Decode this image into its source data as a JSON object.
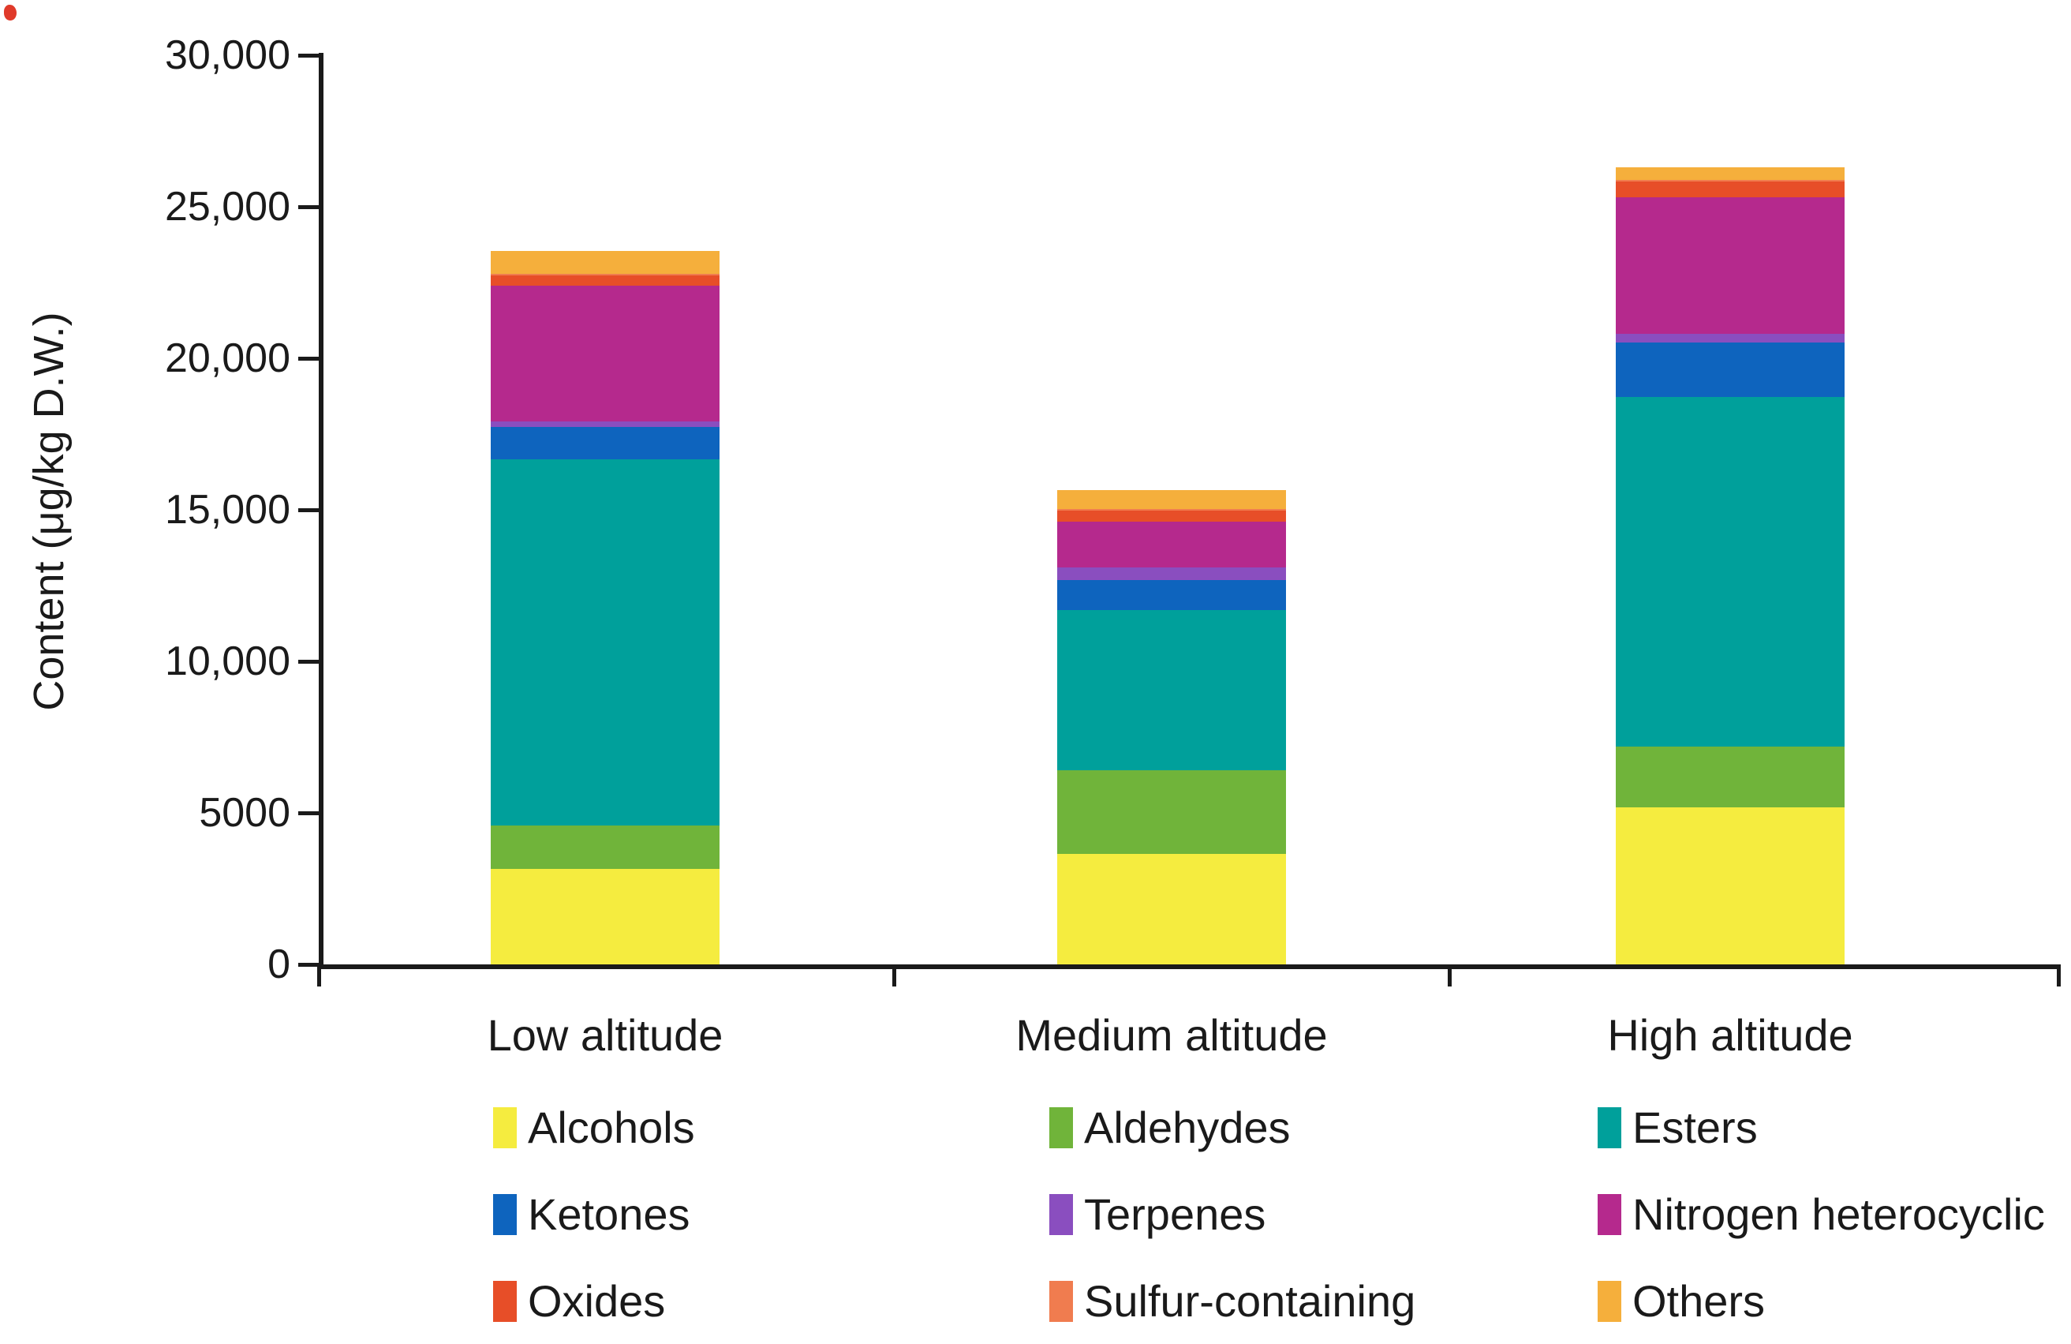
{
  "figure": {
    "background": "#ffffff",
    "axis_color": "#1a1a1a",
    "y_axis": {
      "title": "Content (μg/kg D.W.)",
      "tick_labels": [
        "30,000",
        "25,000",
        "20,000",
        "15,000",
        "10,000",
        "5000",
        "0"
      ],
      "tick_values": [
        30000,
        25000,
        20000,
        15000,
        10000,
        5000,
        0
      ],
      "min": 0,
      "max": 30000
    },
    "x_axis": {
      "categories": [
        "Low altitude",
        "Medium altitude",
        "High altitude"
      ]
    }
  },
  "chart_data": {
    "type": "bar",
    "stacked": true,
    "title": "",
    "xlabel": "",
    "ylabel": "Content (μg/kg D.W.)",
    "ylim": [
      0,
      30000
    ],
    "grid": false,
    "legend_position": "bottom",
    "categories": [
      "Low altitude",
      "Medium altitude",
      "High altitude"
    ],
    "series": [
      {
        "name": "Alcohols",
        "color": "#F5EC3F",
        "values": [
          3150,
          3650,
          5170
        ]
      },
      {
        "name": "Aldehydes",
        "color": "#70B43A",
        "values": [
          1430,
          2750,
          2030
        ]
      },
      {
        "name": "Esters",
        "color": "#00A09B",
        "values": [
          12090,
          5280,
          11520
        ]
      },
      {
        "name": "Ketones",
        "color": "#0E64BE",
        "values": [
          1070,
          990,
          1790
        ]
      },
      {
        "name": "Terpenes",
        "color": "#8A4EBF",
        "values": [
          180,
          440,
          310
        ]
      },
      {
        "name": "Nitrogen heterocyclic",
        "color": "#B5298D",
        "values": [
          4470,
          1510,
          4500
        ]
      },
      {
        "name": "Oxides",
        "color": "#E74E28",
        "values": [
          350,
          360,
          520
        ]
      },
      {
        "name": "Sulfur-containing",
        "color": "#F07C4F",
        "values": [
          50,
          50,
          50
        ]
      },
      {
        "name": "Others",
        "color": "#F5AF3C",
        "values": [
          740,
          620,
          420
        ]
      }
    ],
    "approx_totals": [
      23530,
      15650,
      26310
    ]
  },
  "legend": {
    "items": [
      {
        "label": "Alcohols",
        "color": "#F5EC3F"
      },
      {
        "label": "Aldehydes",
        "color": "#70B43A"
      },
      {
        "label": "Esters",
        "color": "#00A09B"
      },
      {
        "label": "Ketones",
        "color": "#0E64BE"
      },
      {
        "label": "Terpenes",
        "color": "#8A4EBF"
      },
      {
        "label": "Nitrogen heterocyclic",
        "color": "#B5298D"
      },
      {
        "label": "Oxides",
        "color": "#E74E28"
      },
      {
        "label": "Sulfur-containing",
        "color": "#F07C4F"
      },
      {
        "label": "Others",
        "color": "#F5AF3C"
      }
    ]
  }
}
